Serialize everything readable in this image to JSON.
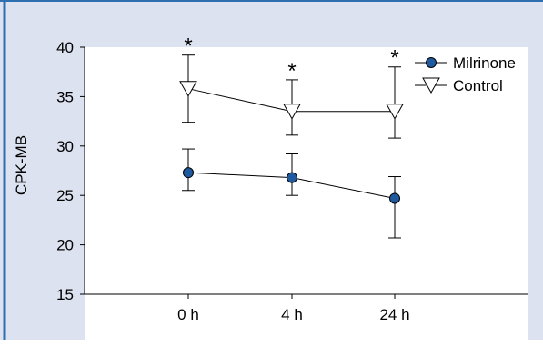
{
  "colors": {
    "panel_background": "#dde2f0",
    "plot_background": "#ffffff",
    "frame_border": "#2e6fb0",
    "milrinone_fill": "#1f5a9e",
    "control_fill": "#ffffff",
    "ink": "#000000"
  },
  "chart_data": {
    "type": "line",
    "title": "",
    "xlabel": "",
    "ylabel": "CPK-MB",
    "categories": [
      "0 h",
      "4 h",
      "24 h"
    ],
    "ylim": [
      15,
      40
    ],
    "yticks": [
      15,
      20,
      25,
      30,
      35,
      40
    ],
    "grid": false,
    "legend_position": "top-right",
    "series": [
      {
        "name": "Milrinone",
        "marker": "circle-filled",
        "values": [
          27.3,
          26.8,
          24.7
        ],
        "error_upper": [
          29.7,
          29.2,
          26.9
        ],
        "error_lower": [
          25.5,
          25.0,
          20.7
        ]
      },
      {
        "name": "Control",
        "marker": "triangle-down-open",
        "values": [
          35.8,
          33.5,
          33.5
        ],
        "error_upper": [
          39.2,
          36.7,
          38.0
        ],
        "error_lower": [
          32.4,
          31.1,
          30.8
        ]
      }
    ],
    "annotations": [
      {
        "text": "*",
        "category": "0 h",
        "y": 40.5
      },
      {
        "text": "*",
        "category": "4 h",
        "y": 38.0
      },
      {
        "text": "*",
        "category": "24 h",
        "y": 39.3
      }
    ]
  }
}
